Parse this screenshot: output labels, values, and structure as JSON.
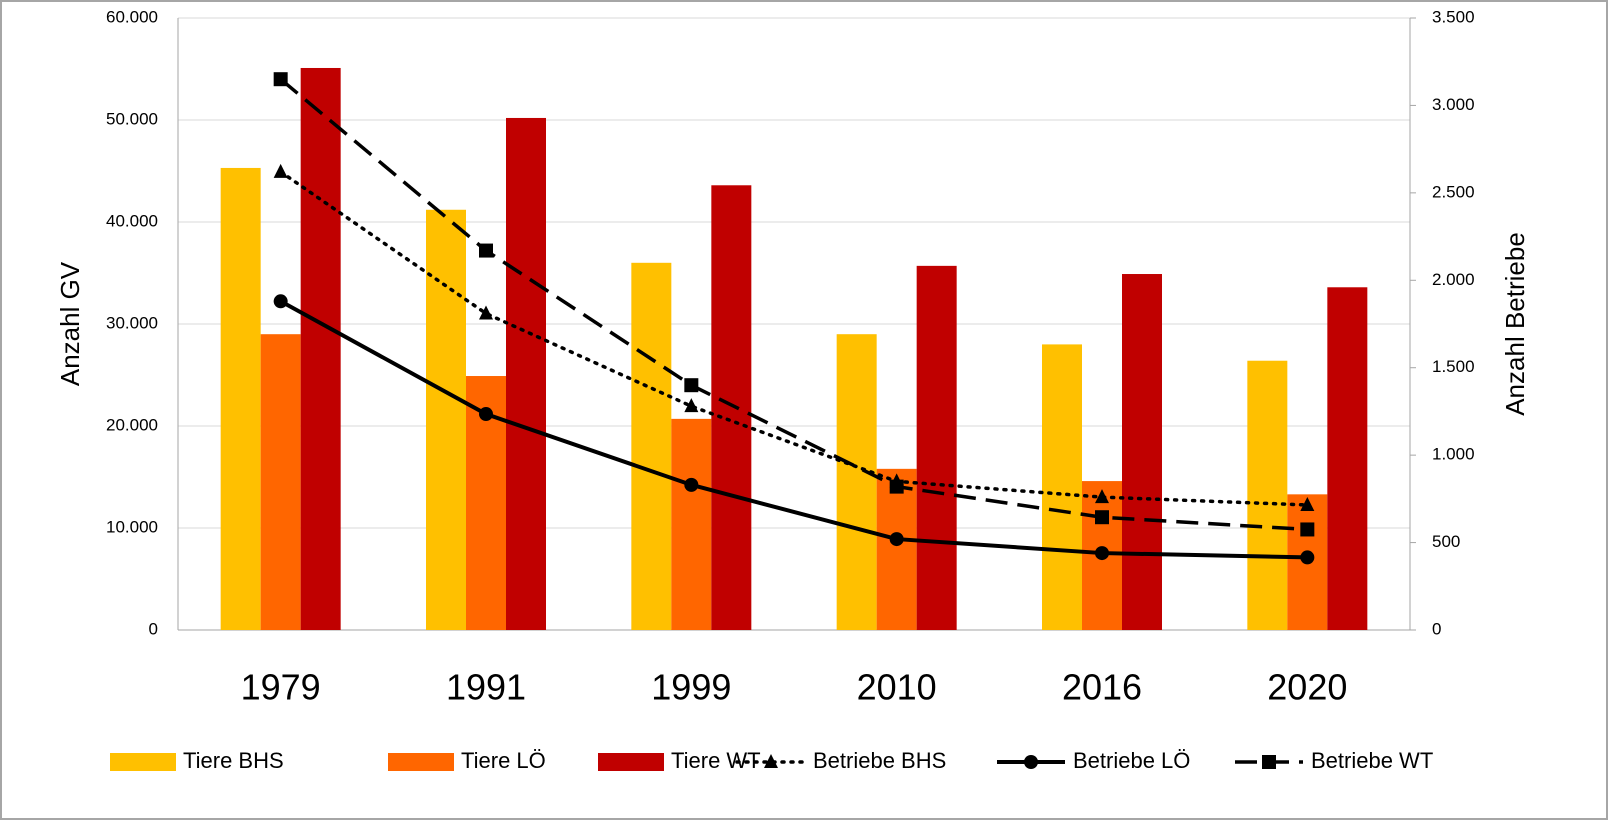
{
  "chart_data": {
    "type": "bar",
    "categories": [
      "1979",
      "1991",
      "1999",
      "2010",
      "2016",
      "2020"
    ],
    "y_label": "Anzahl GV",
    "y2_label": "Anzahl Betriebe",
    "ylim": [
      0,
      60000
    ],
    "yticks": [
      0,
      {
        "value": 10000,
        "label": "10.000"
      },
      {
        "value": 20000,
        "label": "20.000"
      },
      {
        "value": 30000,
        "label": "30.000"
      },
      {
        "value": 40000,
        "label": "40.000"
      },
      {
        "value": 50000,
        "label": "50.000"
      },
      {
        "value": 60000,
        "label": "60.000"
      }
    ],
    "y2lim": [
      0,
      3500
    ],
    "y2ticks": [
      0,
      500,
      {
        "value": 1000,
        "label": "1.000"
      },
      {
        "value": 1500,
        "label": "1.500"
      },
      {
        "value": 2000,
        "label": "2.000"
      },
      {
        "value": 2500,
        "label": "2.500"
      },
      {
        "value": 3000,
        "label": "3.000"
      },
      {
        "value": 3500,
        "label": "3.500"
      }
    ],
    "grid": true,
    "legend": "bottom",
    "series": [
      {
        "name": "Tiere BHS",
        "type": "bar",
        "color": "#ffc000",
        "values": [
          45300,
          41200,
          36000,
          29000,
          28000,
          26400
        ]
      },
      {
        "name": "Tiere LÖ",
        "type": "bar",
        "color": "#ff6600",
        "values": [
          29000,
          24900,
          20700,
          15800,
          14600,
          13300
        ]
      },
      {
        "name": "Tiere WT",
        "type": "bar",
        "color": "#c00000",
        "values": [
          55100,
          50200,
          43600,
          35700,
          34900,
          33600
        ]
      },
      {
        "name": "Betriebe BHS",
        "type": "line",
        "axis": "y2",
        "color": "#000000",
        "marker": "triangle",
        "dash": "dotted",
        "values": [
          2620,
          1810,
          1280,
          850,
          760,
          715
        ]
      },
      {
        "name": "Betriebe LÖ",
        "type": "line",
        "axis": "y2",
        "color": "#000000",
        "marker": "circle",
        "dash": "solid",
        "values": [
          1880,
          1235,
          830,
          520,
          440,
          415
        ]
      },
      {
        "name": "Betriebe WT",
        "type": "line",
        "axis": "y2",
        "color": "#000000",
        "marker": "square",
        "dash": "dashed",
        "values": [
          3150,
          2170,
          1400,
          820,
          645,
          575
        ]
      }
    ]
  }
}
